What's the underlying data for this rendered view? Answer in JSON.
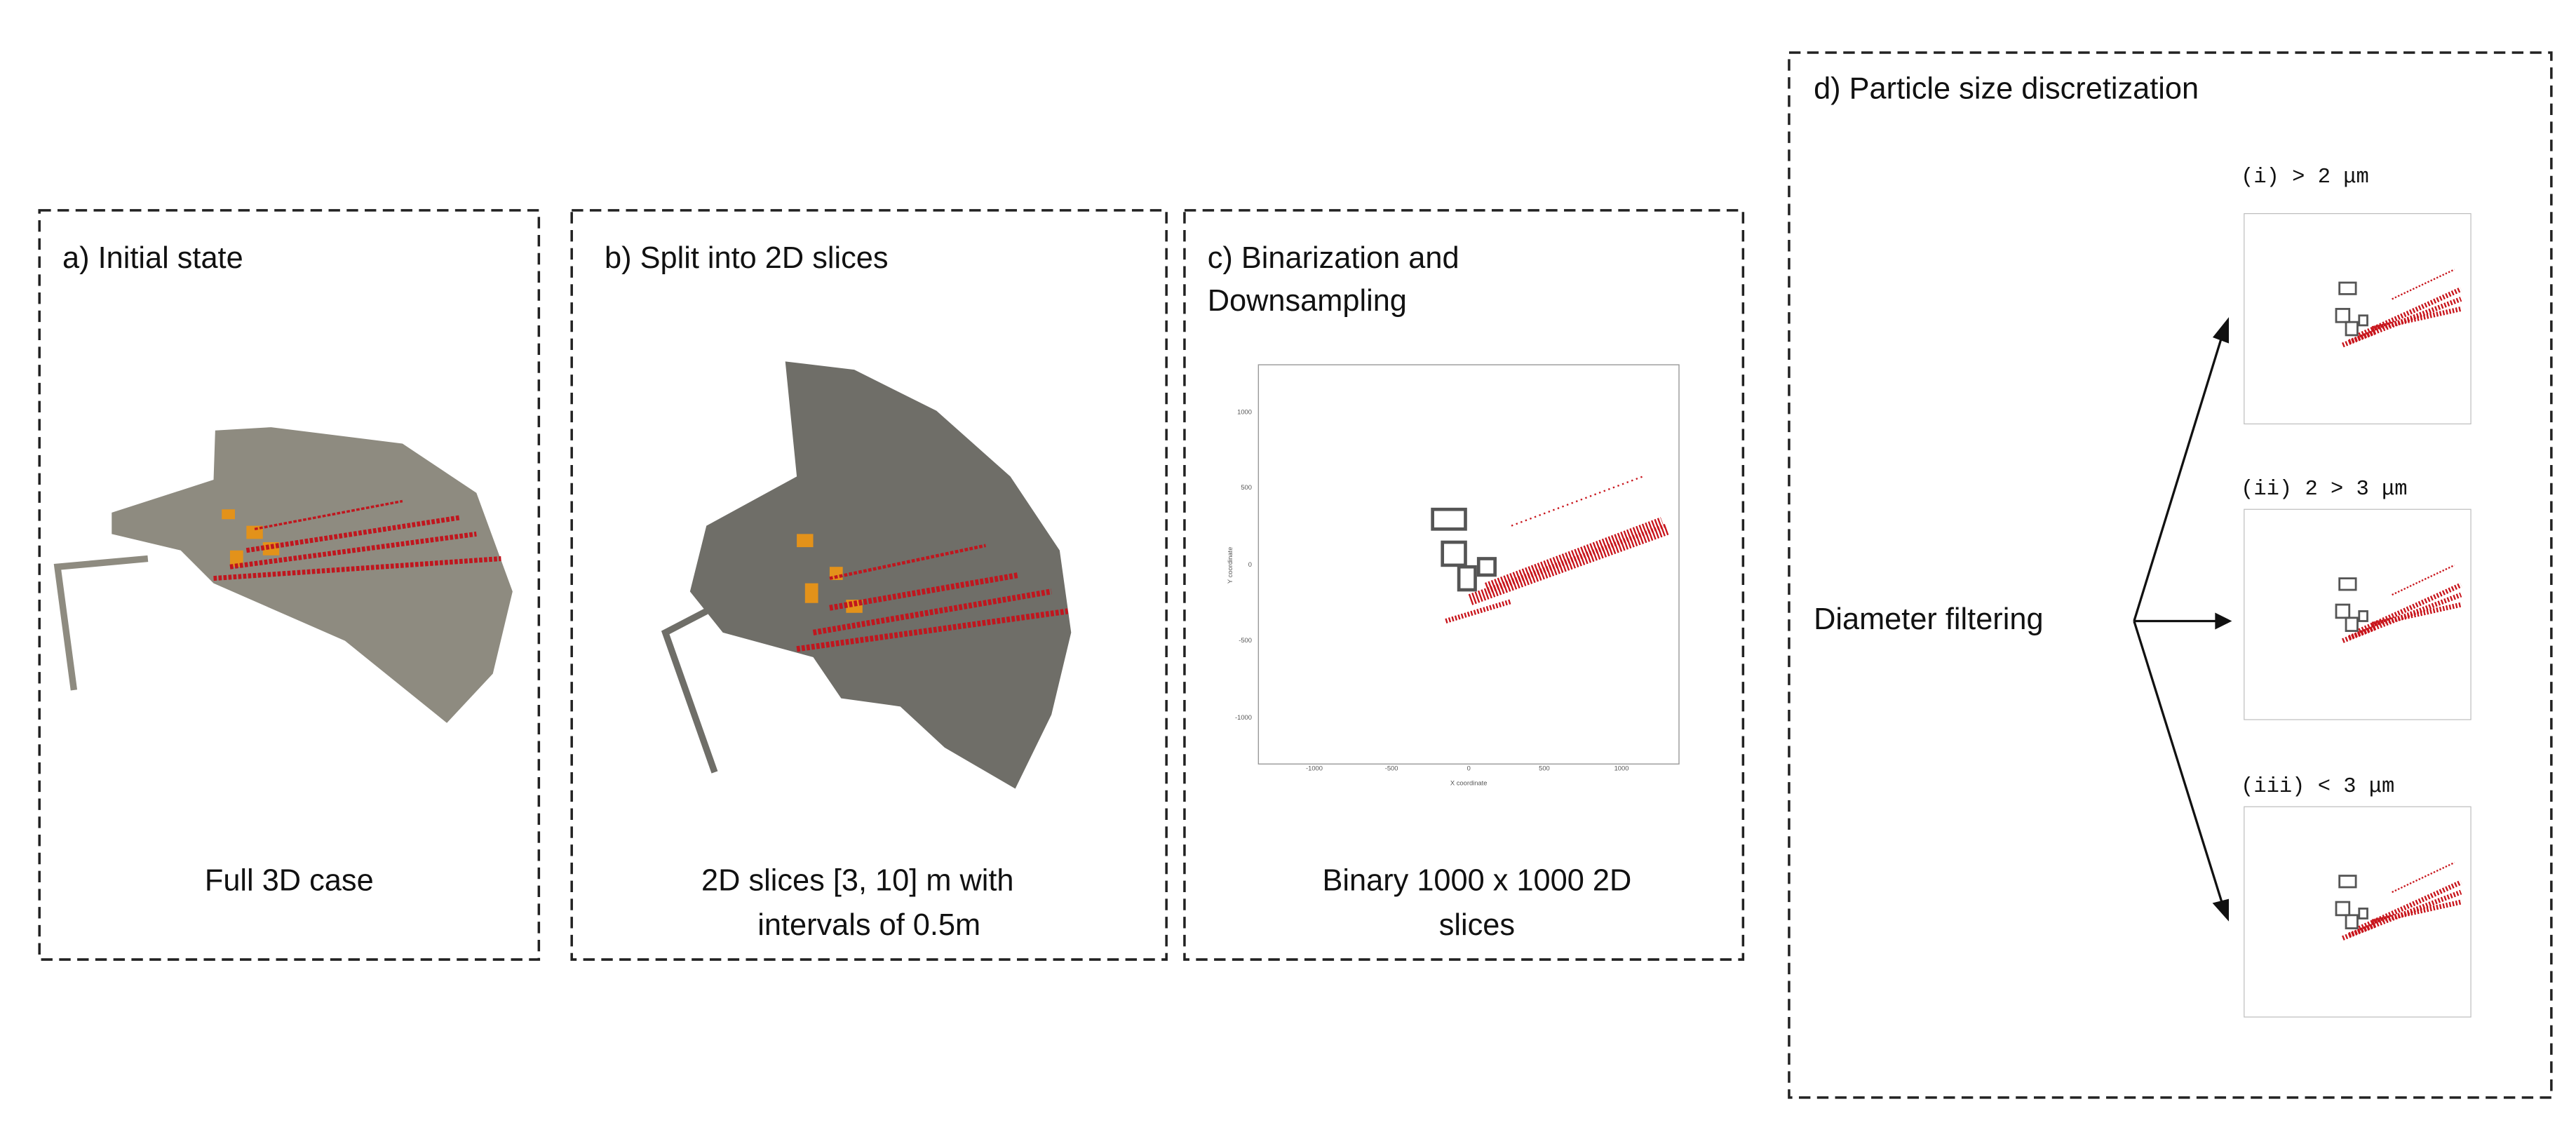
{
  "panels": [
    {
      "title": "a) Initial state",
      "caption": [
        "Full 3D case"
      ]
    },
    {
      "title": "b) Split into 2D slices",
      "caption": [
        "2D slices [3, 10] m with",
        "intervals of 0.5m"
      ]
    },
    {
      "title": [
        "c) Binarization and",
        "Downsampling"
      ],
      "caption": [
        "Binary 1000 x 1000 2D",
        "slices"
      ],
      "plot": {
        "xlabel": "X coordinate",
        "ylabel": "Y coordinate",
        "xticks": [
          -1000,
          -500,
          0,
          500,
          1000
        ],
        "yticks": [
          1000,
          500,
          0,
          -500,
          -1000
        ]
      }
    },
    {
      "title": "d) Particle size discretization",
      "input": "Diameter filtering",
      "outputs": [
        "(i) > 2 μm",
        "(ii) 2 > 3 μm",
        "(iii) < 3 μm"
      ]
    }
  ]
}
